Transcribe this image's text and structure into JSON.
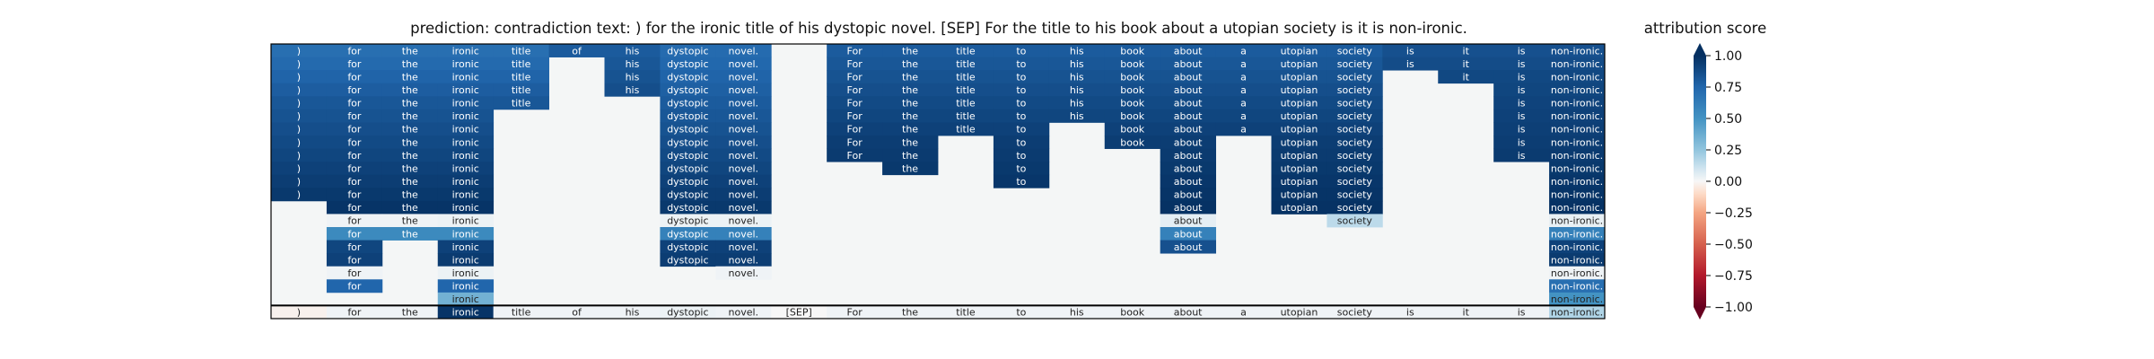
{
  "chart_data": {
    "type": "heatmap",
    "title": "prediction:  contradiction     text:  ) for the ironic title of his dystopic novel. [SEP] For the title to his book about a utopian society is it is non-ironic.",
    "colorbar_label": "attribution score",
    "colorbar_ticks": [
      "1.00",
      "0.75",
      "0.50",
      "0.25",
      "0.00",
      "−0.25",
      "−0.50",
      "−0.75",
      "−1.00"
    ],
    "colorbar_range": [
      -1.0,
      1.0
    ],
    "colormap": "RdBu",
    "background_color": "#f4f6f6",
    "tokens": [
      ")",
      "for",
      "the",
      "ironic",
      "title",
      "of",
      "his",
      "dystopic",
      "novel.",
      "[SEP]",
      "For",
      "the",
      "title",
      "to",
      "his",
      "book",
      "about",
      "a",
      "utopian",
      "society",
      "is",
      "it",
      "is",
      "non-ironic."
    ],
    "rows": [
      [
        0.7,
        0.7,
        0.7,
        0.7,
        0.7,
        0.8,
        0.8,
        0.72,
        0.72,
        null,
        0.8,
        0.8,
        0.8,
        0.8,
        0.8,
        0.8,
        0.8,
        0.8,
        0.8,
        0.8,
        0.85,
        0.85,
        0.85,
        0.85
      ],
      [
        0.73,
        0.73,
        0.73,
        0.73,
        0.73,
        null,
        0.82,
        0.74,
        0.74,
        null,
        0.82,
        0.82,
        0.82,
        0.82,
        0.82,
        0.82,
        0.82,
        0.82,
        0.82,
        0.82,
        0.87,
        0.87,
        0.87,
        0.87
      ],
      [
        0.76,
        0.76,
        0.76,
        0.76,
        0.76,
        null,
        0.84,
        0.76,
        0.76,
        null,
        0.84,
        0.84,
        0.84,
        0.84,
        0.84,
        0.84,
        0.84,
        0.84,
        0.84,
        0.84,
        null,
        0.89,
        0.89,
        0.89
      ],
      [
        0.79,
        0.79,
        0.79,
        0.79,
        0.79,
        null,
        0.86,
        0.78,
        0.78,
        null,
        0.86,
        0.86,
        0.86,
        0.86,
        0.86,
        0.86,
        0.86,
        0.86,
        0.86,
        0.86,
        null,
        null,
        0.9,
        0.9
      ],
      [
        0.82,
        0.82,
        0.82,
        0.82,
        0.82,
        null,
        null,
        0.8,
        0.8,
        null,
        0.88,
        0.88,
        0.88,
        0.88,
        0.88,
        0.88,
        0.88,
        0.88,
        0.88,
        0.88,
        null,
        null,
        0.91,
        0.91
      ],
      [
        0.84,
        0.84,
        0.84,
        0.84,
        null,
        null,
        null,
        0.82,
        0.82,
        null,
        0.9,
        0.9,
        0.9,
        0.9,
        0.9,
        0.9,
        0.9,
        0.9,
        0.9,
        0.9,
        null,
        null,
        0.92,
        0.92
      ],
      [
        0.86,
        0.86,
        0.86,
        0.86,
        null,
        null,
        null,
        0.84,
        0.84,
        null,
        0.92,
        0.92,
        0.92,
        0.92,
        null,
        0.92,
        0.92,
        0.92,
        0.92,
        0.92,
        null,
        null,
        0.93,
        0.93
      ],
      [
        0.88,
        0.88,
        0.88,
        0.88,
        null,
        null,
        null,
        0.86,
        0.86,
        null,
        0.94,
        0.94,
        null,
        0.94,
        null,
        0.94,
        0.94,
        null,
        0.94,
        0.94,
        null,
        null,
        0.94,
        0.94
      ],
      [
        0.9,
        0.9,
        0.9,
        0.9,
        null,
        null,
        null,
        0.88,
        0.88,
        null,
        0.95,
        0.95,
        null,
        0.95,
        null,
        null,
        0.95,
        null,
        0.95,
        0.95,
        null,
        null,
        0.95,
        0.95
      ],
      [
        0.92,
        0.92,
        0.92,
        0.92,
        null,
        null,
        null,
        0.9,
        0.9,
        null,
        null,
        0.96,
        null,
        0.96,
        null,
        null,
        0.96,
        null,
        0.96,
        0.96,
        null,
        null,
        null,
        0.96
      ],
      [
        0.94,
        0.94,
        0.94,
        0.94,
        null,
        null,
        null,
        0.92,
        0.92,
        null,
        null,
        null,
        null,
        0.97,
        null,
        null,
        0.97,
        null,
        0.97,
        0.97,
        null,
        null,
        null,
        0.97
      ],
      [
        0.96,
        0.96,
        0.96,
        0.96,
        null,
        null,
        null,
        0.94,
        0.94,
        null,
        null,
        null,
        null,
        null,
        null,
        null,
        0.98,
        null,
        0.98,
        0.98,
        null,
        null,
        null,
        0.98
      ],
      [
        null,
        0.98,
        0.98,
        0.98,
        null,
        null,
        null,
        0.96,
        0.96,
        null,
        null,
        null,
        null,
        null,
        null,
        null,
        0.99,
        null,
        0.99,
        0.99,
        null,
        null,
        null,
        0.99
      ],
      [
        null,
        0.02,
        0.02,
        0.03,
        null,
        null,
        null,
        0.03,
        0.03,
        null,
        null,
        null,
        null,
        null,
        null,
        null,
        0.05,
        null,
        null,
        0.15,
        null,
        null,
        null,
        0.04
      ],
      [
        null,
        0.55,
        0.55,
        0.55,
        null,
        null,
        null,
        0.6,
        0.6,
        null,
        null,
        null,
        null,
        null,
        null,
        null,
        0.6,
        null,
        null,
        null,
        null,
        null,
        null,
        0.6
      ],
      [
        null,
        0.9,
        null,
        0.92,
        null,
        null,
        null,
        0.92,
        0.92,
        null,
        null,
        null,
        null,
        null,
        null,
        null,
        0.85,
        null,
        null,
        null,
        null,
        null,
        null,
        0.92
      ],
      [
        null,
        0.92,
        null,
        0.95,
        null,
        null,
        null,
        0.94,
        0.94,
        null,
        null,
        null,
        null,
        null,
        null,
        null,
        null,
        null,
        null,
        null,
        null,
        null,
        null,
        0.95
      ],
      [
        null,
        0.02,
        null,
        0.03,
        null,
        null,
        null,
        null,
        0.02,
        null,
        null,
        null,
        null,
        null,
        null,
        null,
        null,
        null,
        null,
        null,
        null,
        null,
        null,
        0.02
      ],
      [
        null,
        0.75,
        null,
        0.75,
        null,
        null,
        null,
        null,
        null,
        null,
        null,
        null,
        null,
        null,
        null,
        null,
        null,
        null,
        null,
        null,
        null,
        null,
        null,
        0.7
      ],
      [
        null,
        null,
        null,
        0.35,
        null,
        null,
        null,
        null,
        null,
        null,
        null,
        null,
        null,
        null,
        null,
        null,
        null,
        null,
        null,
        null,
        null,
        null,
        null,
        0.5
      ],
      [
        -0.02,
        0.02,
        0.02,
        0.98,
        0.02,
        0.02,
        0.02,
        0.03,
        0.02,
        0.0,
        0.02,
        0.02,
        0.02,
        0.02,
        0.02,
        0.02,
        0.02,
        0.02,
        0.02,
        0.02,
        0.02,
        0.02,
        0.02,
        0.18
      ]
    ]
  }
}
